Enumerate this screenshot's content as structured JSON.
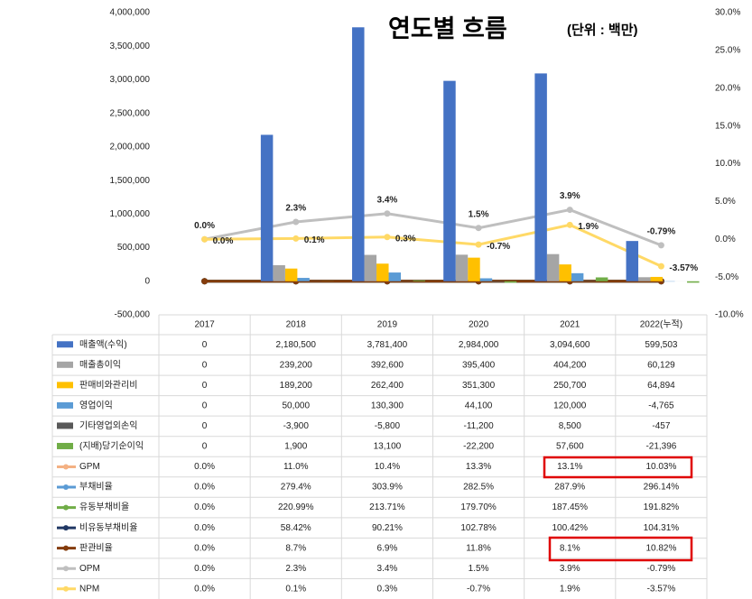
{
  "chart_data": {
    "type": "bar",
    "title": "연도별 흐름",
    "subtitle": "(단위 : 백만)",
    "categories": [
      "2017",
      "2018",
      "2019",
      "2020",
      "2021",
      "2022(누적)"
    ],
    "ylim": [
      -500000,
      4000000
    ],
    "yticks": [
      {
        "value": -500000,
        "label": "-500,000"
      },
      0,
      {
        "value": 500000,
        "label": "500,000"
      },
      {
        "value": 1000000,
        "label": "1,000,000"
      },
      {
        "value": 1500000,
        "label": "1,500,000"
      },
      {
        "value": 2000000,
        "label": "2,000,000"
      },
      {
        "value": 2500000,
        "label": "2,500,000"
      },
      {
        "value": 3000000,
        "label": "3,000,000"
      },
      {
        "value": 3500000,
        "label": "3,500,000"
      },
      {
        "value": 4000000,
        "label": "4,000,000"
      }
    ],
    "y2lim": [
      -10,
      30
    ],
    "y2ticks": [
      {
        "value": -10,
        "label": "-10.0%"
      },
      {
        "value": -5,
        "label": "-5.0%"
      },
      {
        "value": 0,
        "label": "0.0%"
      },
      {
        "value": 5,
        "label": "5.0%"
      },
      {
        "value": 10,
        "label": "10.0%"
      },
      {
        "value": 15,
        "label": "15.0%"
      },
      {
        "value": 20,
        "label": "20.0%"
      },
      {
        "value": 25,
        "label": "25.0%"
      },
      {
        "value": 30,
        "label": "30.0%"
      }
    ],
    "grid": false,
    "series": [
      {
        "name": "매출액(수익)",
        "type": "bar",
        "color": "#4472c4",
        "values": [
          0,
          2180500,
          3781400,
          2984000,
          3094600,
          599503
        ],
        "value_labels": [
          "0",
          "2,180,500",
          "3,781,400",
          "2,984,000",
          "3,094,600",
          "599,503"
        ]
      },
      {
        "name": "매출총이익",
        "type": "bar",
        "color": "#a5a5a5",
        "values": [
          0,
          239200,
          392600,
          395400,
          404200,
          60129
        ],
        "value_labels": [
          "0",
          "239,200",
          "392,600",
          "395,400",
          "404,200",
          "60,129"
        ]
      },
      {
        "name": "판매비와관리비",
        "type": "bar",
        "color": "#ffc000",
        "values": [
          0,
          189200,
          262400,
          351300,
          250700,
          64894
        ],
        "value_labels": [
          "0",
          "189,200",
          "262,400",
          "351,300",
          "250,700",
          "64,894"
        ]
      },
      {
        "name": "영업이익",
        "type": "bar",
        "color": "#5b9bd5",
        "values": [
          0,
          50000,
          130300,
          44100,
          120000,
          -4765
        ],
        "value_labels": [
          "0",
          "50,000",
          "130,300",
          "44,100",
          "120,000",
          "-4,765"
        ]
      },
      {
        "name": "기타영업외손익",
        "type": "bar",
        "color": "#595959",
        "values": [
          0,
          -3900,
          -5800,
          -11200,
          8500,
          -457
        ],
        "value_labels": [
          "0",
          "-3,900",
          "-5,800",
          "-11,200",
          "8,500",
          "-457"
        ]
      },
      {
        "name": "(지배)당기순이익",
        "type": "bar",
        "color": "#70ad47",
        "values": [
          0,
          1900,
          13100,
          -22200,
          57600,
          -21396
        ],
        "value_labels": [
          "0",
          "1,900",
          "13,100",
          "-22,200",
          "57,600",
          "-21,396"
        ]
      },
      {
        "name": "GPM",
        "type": "line",
        "color": "#f4b183",
        "values": [
          0,
          11.0,
          10.4,
          13.3,
          13.1,
          10.03
        ],
        "value_labels": [
          "0.0%",
          "11.0%",
          "10.4%",
          "13.3%",
          "13.1%",
          "10.03%"
        ]
      },
      {
        "name": "부채비율",
        "type": "line",
        "color": "#5b9bd5",
        "values": [
          0,
          279.4,
          303.9,
          282.5,
          287.9,
          296.14
        ],
        "value_labels": [
          "0.0%",
          "279.4%",
          "303.9%",
          "282.5%",
          "287.9%",
          "296.14%"
        ]
      },
      {
        "name": "유동부채비율",
        "type": "line",
        "color": "#70ad47",
        "values": [
          0,
          220.99,
          213.71,
          179.7,
          187.45,
          191.82
        ],
        "value_labels": [
          "0.0%",
          "220.99%",
          "213.71%",
          "179.70%",
          "187.45%",
          "191.82%"
        ]
      },
      {
        "name": "비유동부채비율",
        "type": "line",
        "color": "#203864",
        "values": [
          0,
          58.42,
          90.21,
          102.78,
          100.42,
          104.31
        ],
        "value_labels": [
          "0.0%",
          "58.42%",
          "90.21%",
          "102.78%",
          "100.42%",
          "104.31%"
        ]
      },
      {
        "name": "판관비율",
        "type": "line",
        "color": "#843c0c",
        "values": [
          0,
          8.7,
          6.9,
          11.8,
          8.1,
          10.82
        ],
        "value_labels": [
          "0.0%",
          "8.7%",
          "6.9%",
          "11.8%",
          "8.1%",
          "10.82%"
        ]
      },
      {
        "name": "OPM",
        "type": "line",
        "axis": "y2",
        "color": "#bfbfbf",
        "data_labels": true,
        "label_color": "#000000",
        "values": [
          0,
          2.3,
          3.4,
          1.5,
          3.9,
          -0.79
        ],
        "value_labels": [
          "0.0%",
          "2.3%",
          "3.4%",
          "1.5%",
          "3.9%",
          "-0.79%"
        ]
      },
      {
        "name": "NPM",
        "type": "line",
        "axis": "y2",
        "color": "#ffd966",
        "data_labels": true,
        "label_color": "#e00000",
        "values": [
          0,
          0.1,
          0.3,
          -0.7,
          1.9,
          -3.57
        ],
        "value_labels": [
          "0.0%",
          "0.1%",
          "0.3%",
          "-0.7%",
          "1.9%",
          "-3.57%"
        ]
      }
    ]
  }
}
